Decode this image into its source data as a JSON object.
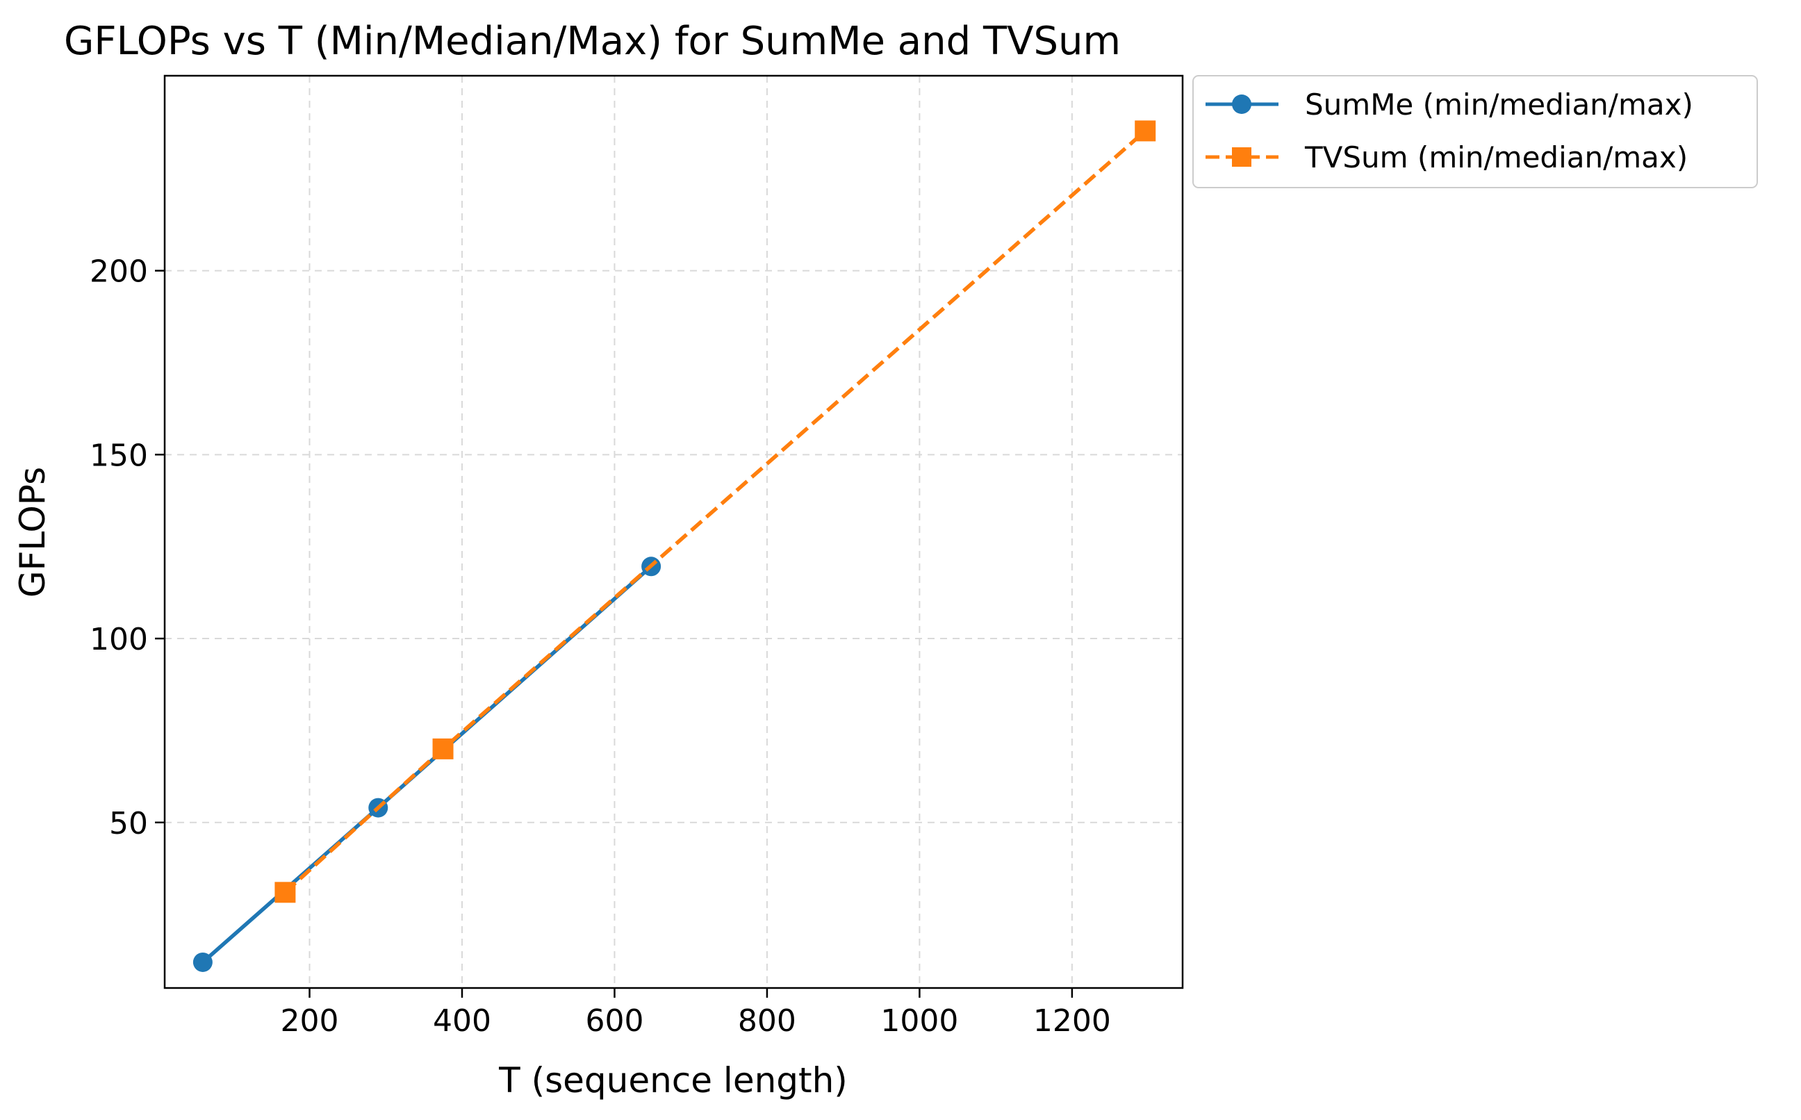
{
  "chart_data": {
    "type": "line",
    "title": "GFLOPs vs T (Min/Median/Max) for SumMe and TVSum",
    "xlabel": "T (sequence length)",
    "ylabel": "GFLOPs",
    "xlim": [
      10,
      1345
    ],
    "ylim": [
      5,
      253
    ],
    "xticks": [
      200,
      400,
      600,
      800,
      1000,
      1200
    ],
    "yticks": [
      50,
      100,
      150,
      200
    ],
    "grid": true,
    "legend_placement": "outside upper right",
    "series": [
      {
        "name": "SumMe (min/median/max)",
        "color": "#1f77b4",
        "marker": "circle",
        "linestyle": "solid",
        "x": [
          60,
          290,
          648
        ],
        "y": [
          12,
          54,
          119.6
        ]
      },
      {
        "name": "TVSum (min/median/max)",
        "color": "#ff7f0e",
        "marker": "square",
        "linestyle": "dashed",
        "x": [
          168,
          375,
          1296
        ],
        "y": [
          31,
          70,
          238
        ]
      }
    ]
  }
}
